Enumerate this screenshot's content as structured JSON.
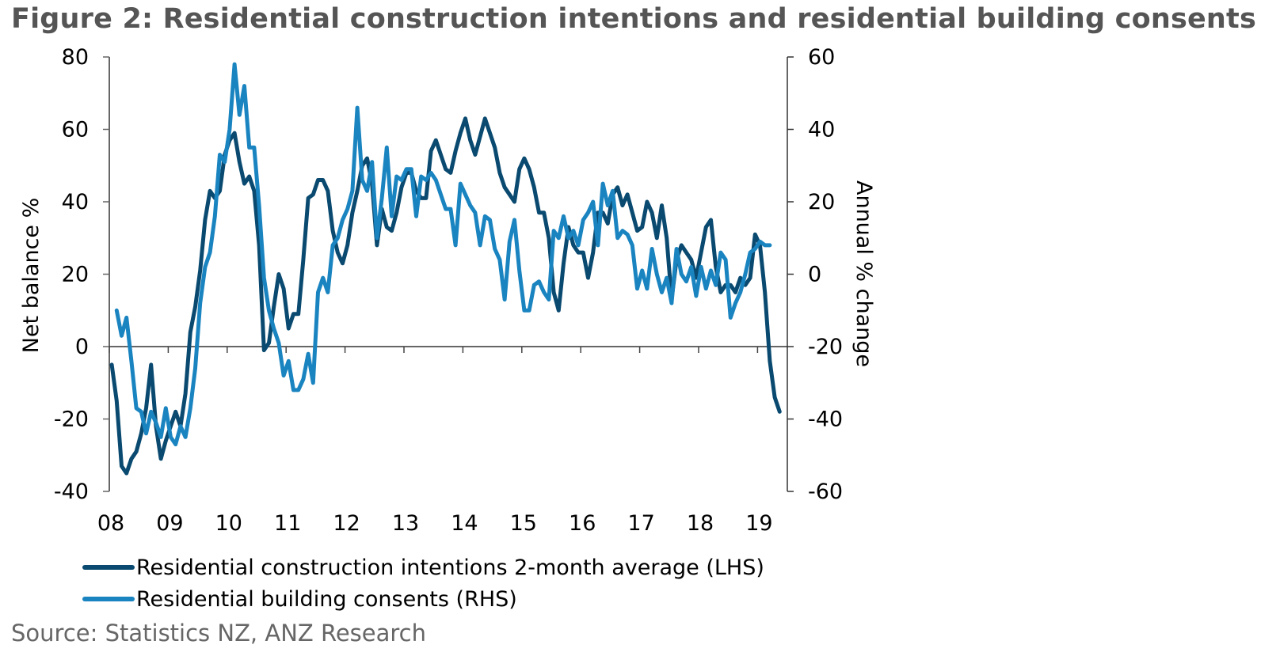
{
  "title": "Figure 2: Residential construction intentions and residential building consents",
  "source": "Source: Statistics NZ, ANZ Research",
  "chart_data": {
    "type": "line",
    "title": "Figure 2: Residential construction intentions and residential building consents",
    "xlabel": "",
    "x_tick_labels": [
      "08",
      "09",
      "10",
      "11",
      "12",
      "13",
      "14",
      "15",
      "16",
      "17",
      "18",
      "19"
    ],
    "x_unit": "months since Jan 2008",
    "y_left": {
      "label": "Net balance %",
      "range": [
        -40,
        80
      ],
      "ticks": [
        80,
        60,
        40,
        20,
        0,
        -20,
        -40
      ]
    },
    "y_right": {
      "label": "Annual % change",
      "range": [
        -60,
        60
      ],
      "ticks": [
        60,
        40,
        20,
        0,
        -20,
        -40,
        -60
      ]
    },
    "grid": false,
    "legend_position": "bottom-left",
    "series": [
      {
        "name": "Residential construction intentions 2-month average (LHS)",
        "axis": "left",
        "color": "#0a4a70",
        "start_month": 0.5,
        "step_months": 1,
        "values": [
          -5,
          -15,
          -33,
          -35,
          -31,
          -29,
          -24,
          -17,
          -5,
          -22,
          -31,
          -26,
          -22,
          -18,
          -22,
          -13,
          4,
          11,
          21,
          35,
          43,
          41,
          43,
          53,
          57,
          59,
          51,
          45,
          47,
          43,
          28,
          -1,
          1,
          11,
          20,
          16,
          5,
          9,
          9,
          24,
          41,
          42,
          46,
          46,
          43,
          32,
          26,
          23,
          28,
          37,
          43,
          50,
          52,
          45,
          28,
          38,
          33,
          32,
          37,
          44,
          48,
          48,
          43,
          41,
          41,
          54,
          57,
          53,
          49,
          48,
          54,
          59,
          63,
          57,
          53,
          58,
          63,
          59,
          55,
          48,
          44,
          42,
          40,
          49,
          52,
          49,
          44,
          37,
          37,
          30,
          15,
          10,
          23,
          33,
          28,
          26,
          26,
          19,
          26,
          37,
          37,
          34,
          42,
          44,
          39,
          42,
          37,
          32,
          33,
          40,
          37,
          30,
          39,
          30,
          13,
          24,
          28,
          26,
          24,
          19,
          26,
          33,
          35,
          22,
          15,
          17,
          17,
          15,
          19,
          17,
          19,
          31,
          28,
          15,
          -4,
          -14,
          -18
        ]
      },
      {
        "name": "Residential building consents (RHS)",
        "axis": "right",
        "color": "#1a84c0",
        "start_month": 1.5,
        "step_months": 1,
        "values": [
          -10,
          -17,
          -12,
          -24,
          -37,
          -38,
          -44,
          -38,
          -41,
          -45,
          -37,
          -45,
          -47,
          -42,
          -45,
          -37,
          -26,
          -8,
          2,
          6,
          16,
          33,
          31,
          40,
          58,
          44,
          52,
          35,
          35,
          19,
          -1,
          -10,
          -15,
          -19,
          -28,
          -24,
          -32,
          -32,
          -29,
          -22,
          -30,
          -5,
          -1,
          -5,
          8,
          10,
          15,
          18,
          23,
          46,
          26,
          23,
          31,
          10,
          21,
          35,
          16,
          27,
          26,
          29,
          29,
          16,
          27,
          26,
          28,
          26,
          22,
          18,
          18,
          8,
          25,
          22,
          19,
          17,
          8,
          16,
          15,
          7,
          4,
          -7,
          9,
          15,
          1,
          -10,
          -10,
          -3,
          -2,
          -5,
          -7,
          12,
          10,
          16,
          10,
          12,
          8,
          15,
          17,
          20,
          8,
          25,
          19,
          23,
          10,
          12,
          11,
          8,
          -4,
          1,
          -4,
          7,
          0,
          -5,
          -1,
          -8,
          7,
          0,
          -2,
          2,
          -6,
          2,
          -4,
          1,
          -3,
          6,
          4,
          -12,
          -8,
          -5,
          0,
          6,
          7,
          9,
          8,
          8
        ]
      }
    ]
  },
  "legend": [
    {
      "label": "Residential construction intentions 2-month average (LHS)",
      "color": "#0a4a70"
    },
    {
      "label": "Residential building consents (RHS)",
      "color": "#1a84c0"
    }
  ]
}
